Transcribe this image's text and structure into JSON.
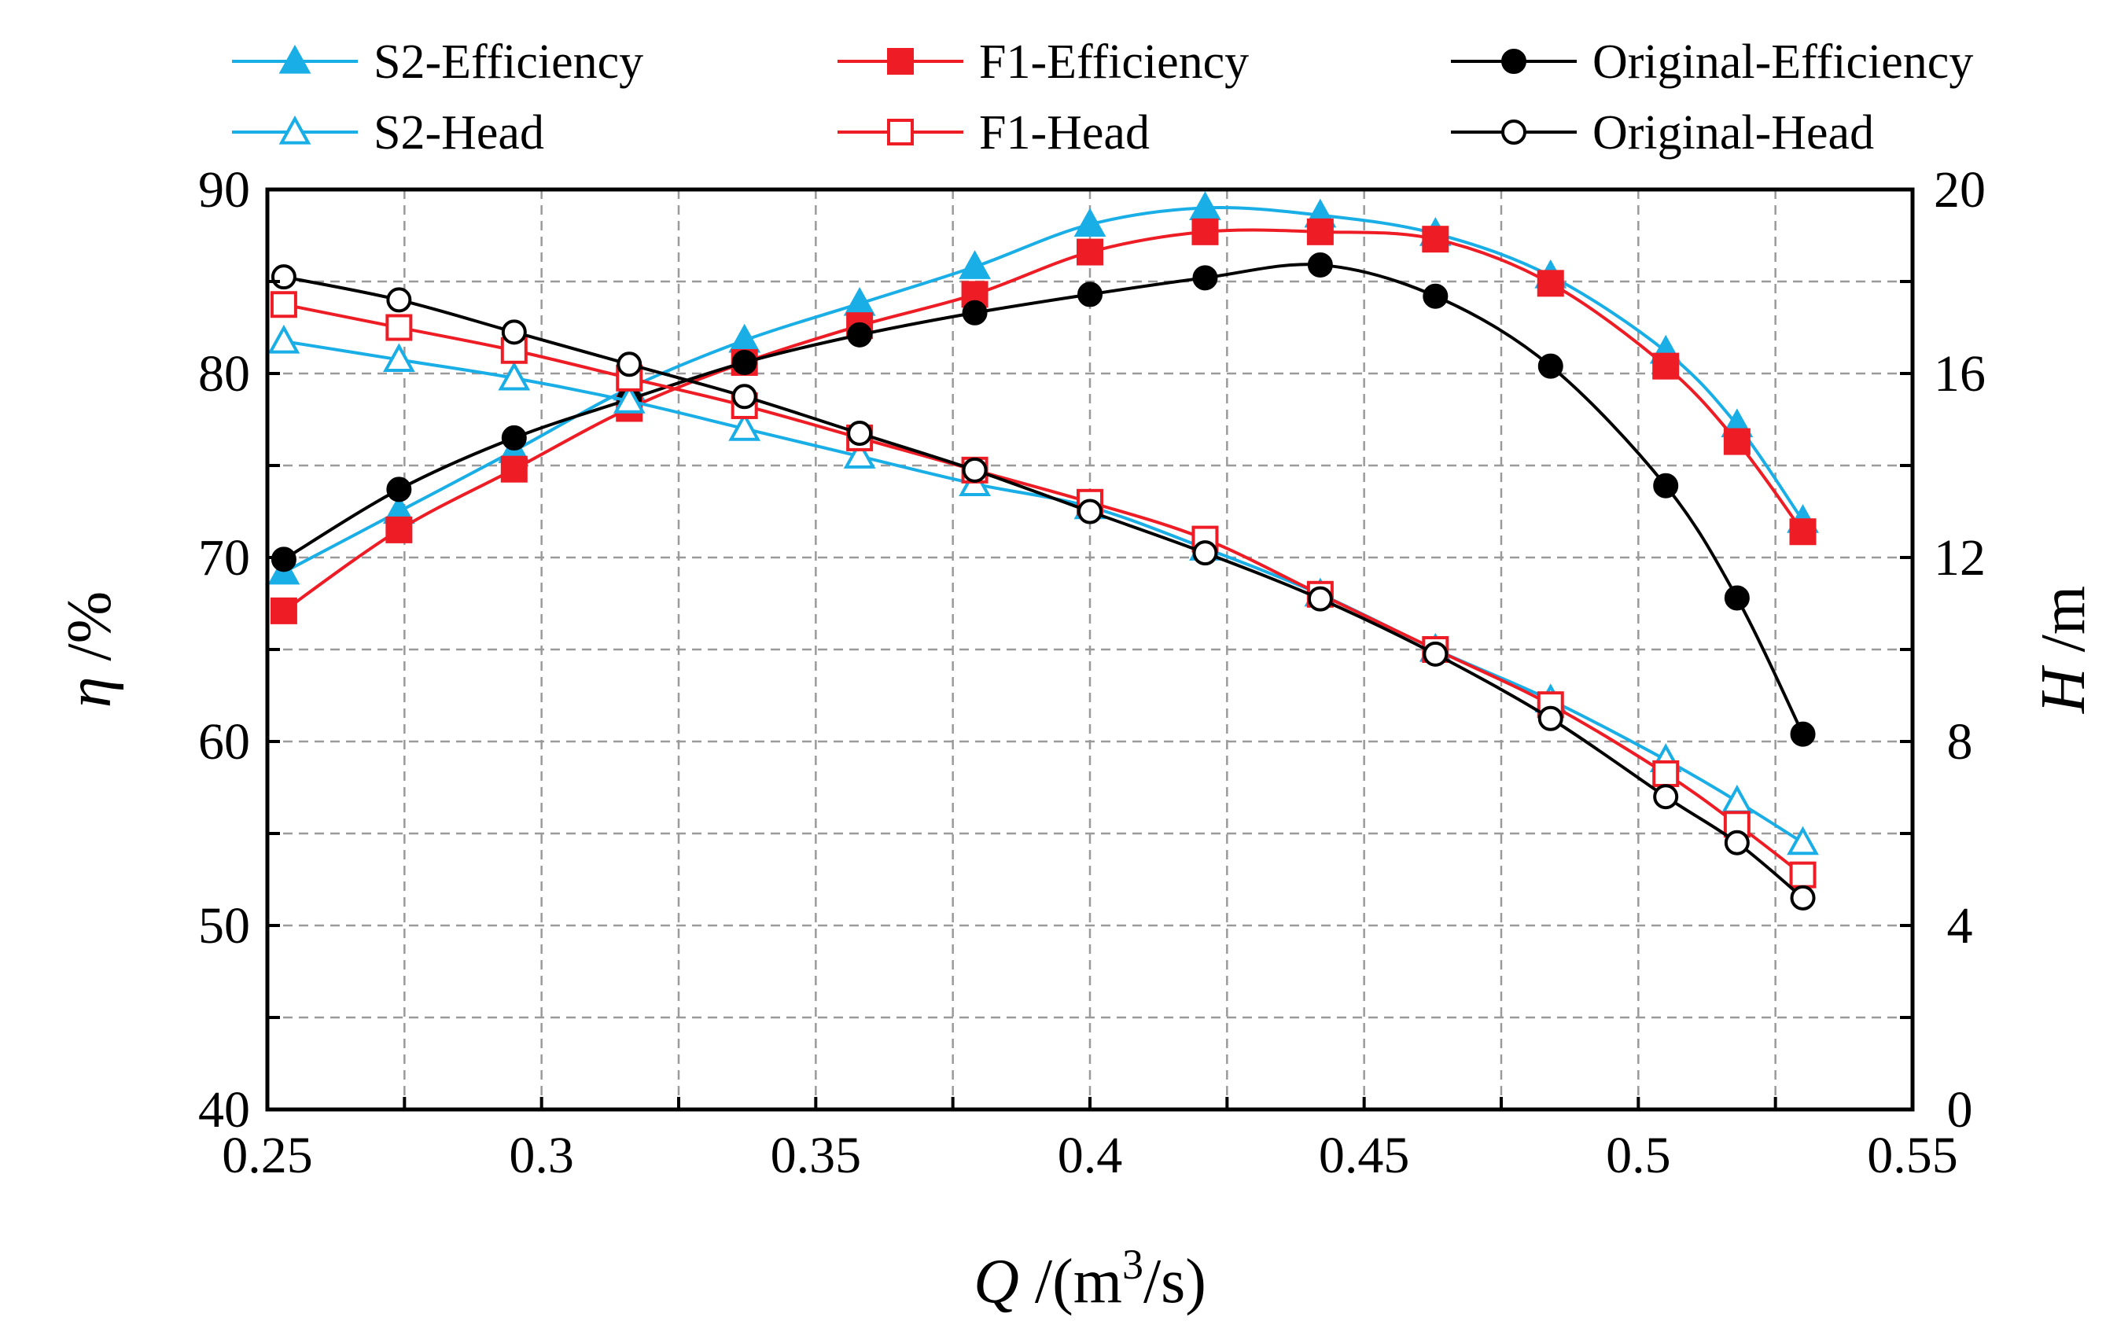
{
  "chart_data": {
    "type": "line",
    "title": "",
    "xlabel": {
      "var": "Q",
      "unit_prefix": " /(m",
      "unit_sup": "3",
      "unit_suffix": "/s)"
    },
    "ylabel_left": {
      "var": "η",
      "unit": " /%"
    },
    "ylabel_right": {
      "var": "H",
      "unit": " /m"
    },
    "xlim": [
      0.25,
      0.55
    ],
    "ylim_left": [
      40,
      90
    ],
    "ylim_right": [
      0,
      20
    ],
    "x_ticks": [
      "0.25",
      "0.3",
      "0.35",
      "0.4",
      "0.45",
      "0.5",
      "0.55"
    ],
    "x_tick_values": [
      0.25,
      0.3,
      0.35,
      0.4,
      0.45,
      0.5,
      0.55
    ],
    "y_left_ticks": [
      "40",
      "50",
      "60",
      "70",
      "80",
      "90"
    ],
    "y_left_tick_values": [
      40,
      50,
      60,
      70,
      80,
      90
    ],
    "y_right_ticks": [
      "0",
      "4",
      "8",
      "12",
      "16",
      "20"
    ],
    "y_right_tick_values": [
      0,
      4,
      8,
      12,
      16,
      20
    ],
    "grid": true,
    "legend_position": "top",
    "x": [
      0.253,
      0.274,
      0.295,
      0.316,
      0.337,
      0.358,
      0.379,
      0.4,
      0.421,
      0.442,
      0.463,
      0.484,
      0.505,
      0.518,
      0.53
    ],
    "series": [
      {
        "name": "S2-Efficiency",
        "axis": "left",
        "color": "#1aaee6",
        "marker": "triangle",
        "filled": true,
        "values": [
          69.2,
          72.5,
          75.8,
          79.2,
          81.8,
          83.8,
          85.8,
          88.1,
          89.0,
          88.6,
          87.6,
          85.3,
          81.2,
          77.2,
          72.0
        ]
      },
      {
        "name": "F1-Efficiency",
        "axis": "left",
        "color": "#ee1c24",
        "marker": "square",
        "filled": true,
        "values": [
          67.1,
          71.5,
          74.8,
          78.1,
          80.6,
          82.6,
          84.3,
          86.6,
          87.7,
          87.7,
          87.3,
          84.9,
          80.4,
          76.3,
          71.4
        ]
      },
      {
        "name": "Original-Efficiency",
        "axis": "left",
        "color": "#000000",
        "marker": "circle",
        "filled": true,
        "values": [
          69.9,
          73.7,
          76.5,
          78.6,
          80.6,
          82.1,
          83.3,
          84.3,
          85.2,
          85.9,
          84.2,
          80.4,
          73.9,
          67.8,
          60.4
        ]
      },
      {
        "name": "S2-Head",
        "axis": "right",
        "color": "#1aaee6",
        "marker": "triangle",
        "filled": false,
        "values": [
          16.7,
          16.3,
          15.9,
          15.4,
          14.8,
          14.2,
          13.6,
          13.1,
          12.2,
          11.2,
          10.0,
          8.9,
          7.6,
          6.7,
          5.8
        ]
      },
      {
        "name": "F1-Head",
        "axis": "right",
        "color": "#ee1c24",
        "marker": "square",
        "filled": false,
        "values": [
          17.5,
          17.0,
          16.5,
          15.9,
          15.3,
          14.6,
          13.9,
          13.2,
          12.4,
          11.2,
          10.0,
          8.8,
          7.3,
          6.2,
          5.1
        ]
      },
      {
        "name": "Original-Head",
        "axis": "right",
        "color": "#000000",
        "marker": "circle",
        "filled": false,
        "values": [
          18.1,
          17.6,
          16.9,
          16.2,
          15.5,
          14.7,
          13.9,
          13.0,
          12.1,
          11.1,
          9.9,
          8.5,
          6.8,
          5.8,
          4.6
        ]
      }
    ]
  }
}
